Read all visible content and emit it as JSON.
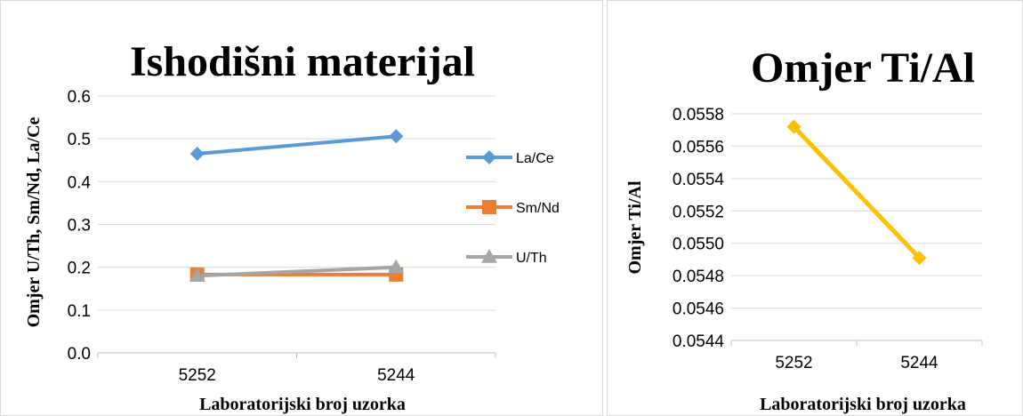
{
  "chart_data": [
    {
      "type": "line",
      "title": "Ishodišni materijal",
      "xlabel": "Laboratorijski broj uzorka",
      "ylabel": "Omjer U/Th, Sm/Nd, La/Ce",
      "categories": [
        "5252",
        "5244"
      ],
      "ylim": [
        0,
        0.6
      ],
      "yticks": [
        "0.0",
        "0.1",
        "0.2",
        "0.3",
        "0.4",
        "0.5",
        "0.6"
      ],
      "grid": true,
      "legend": "right",
      "series": [
        {
          "name": "La/Ce",
          "values": [
            0.465,
            0.506
          ],
          "color": "#5B9BD5",
          "marker": "diamond"
        },
        {
          "name": "Sm/Nd",
          "values": [
            0.183,
            0.183
          ],
          "color": "#ED7D31",
          "marker": "square"
        },
        {
          "name": "U/Th",
          "values": [
            0.18,
            0.2
          ],
          "color": "#A5A5A5",
          "marker": "triangle"
        }
      ]
    },
    {
      "type": "line",
      "title": "Omjer Ti/Al",
      "xlabel": "Laboratorijski broj uzorka",
      "ylabel": "Omjer Ti/Al",
      "categories": [
        "5252",
        "5244"
      ],
      "ylim": [
        0.0544,
        0.0558
      ],
      "yticks": [
        "0.0544",
        "0.0546",
        "0.0548",
        "0.0550",
        "0.0552",
        "0.0554",
        "0.0556",
        "0.0558"
      ],
      "grid": true,
      "legend": "none",
      "series": [
        {
          "values": [
            0.05572,
            0.05491
          ],
          "color": "#FFC000",
          "marker": "diamond"
        }
      ]
    }
  ]
}
